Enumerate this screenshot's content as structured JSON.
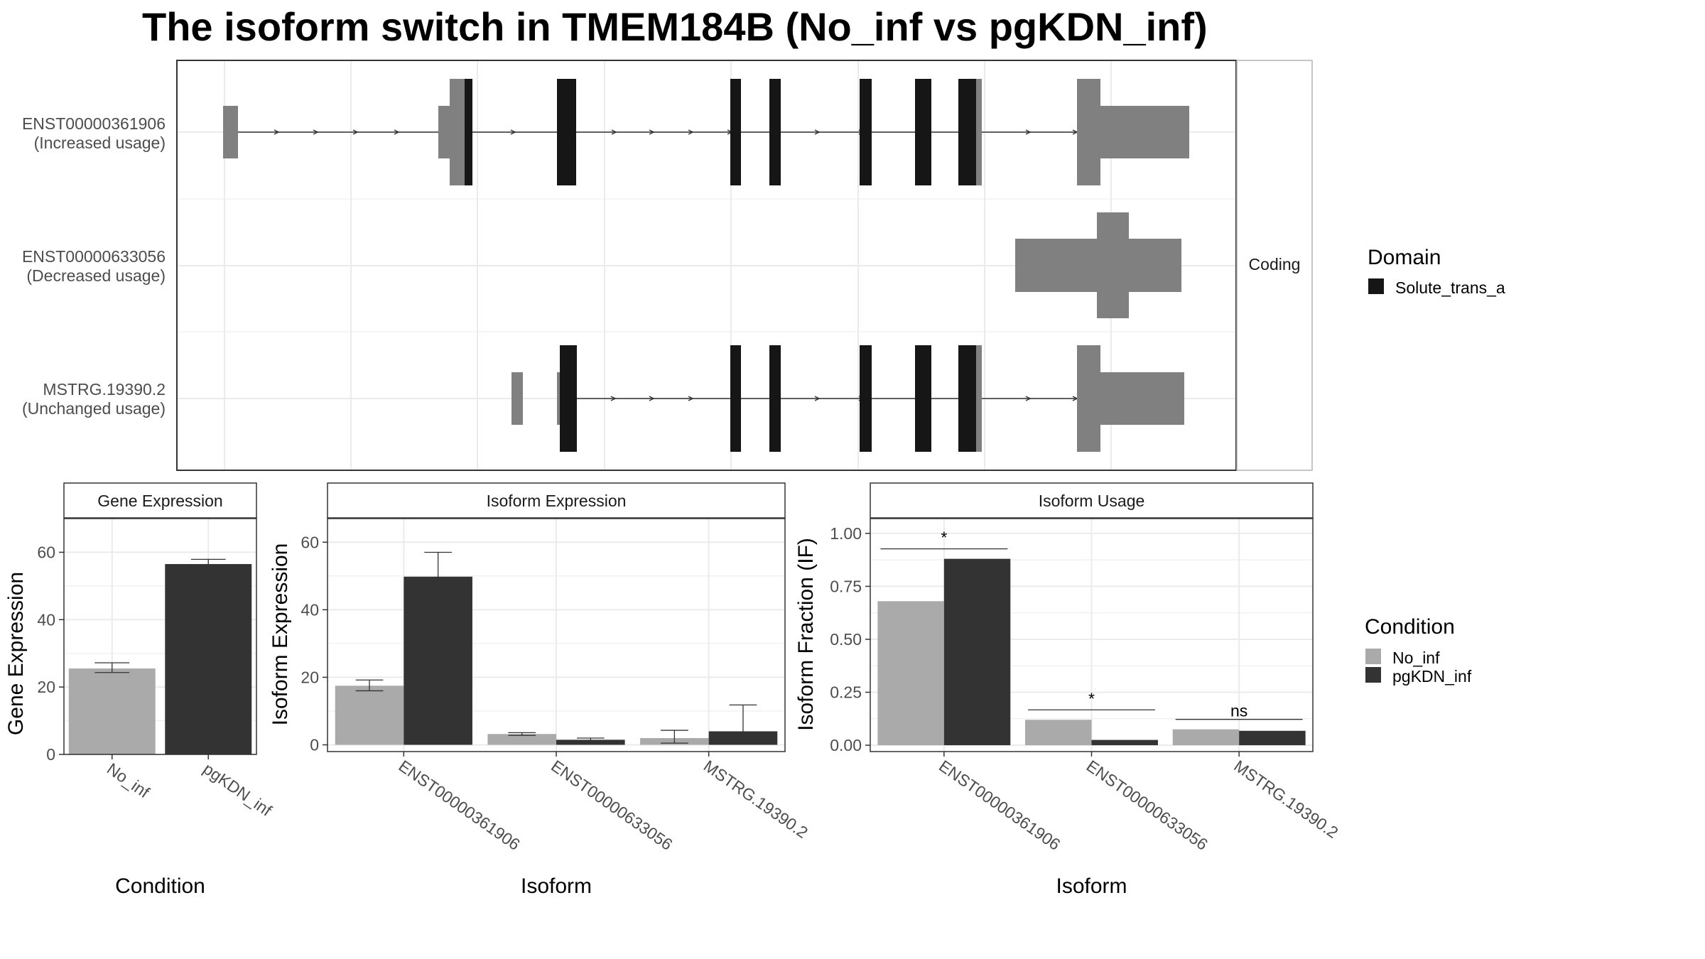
{
  "title": "The isoform switch in TMEM184B (No_inf vs pgKDN_inf)",
  "colors": {
    "no_inf": "#aaaaaa",
    "pgkdn_inf": "#333333",
    "utr": "#808080",
    "domain": "#161616",
    "grid": "#ebebeb",
    "border": "#333333",
    "strip_border": "#b3b3b3"
  },
  "structure": {
    "facet_label": "Coding",
    "transcripts": [
      {
        "id": "ENST00000361906",
        "usage": "(Increased usage)"
      },
      {
        "id": "ENST00000633056",
        "usage": "(Decreased usage)"
      },
      {
        "id": "MSTRG.19390.2",
        "usage": "(Unchanged usage)"
      }
    ],
    "domain_legend": {
      "title": "Domain",
      "items": [
        "Solute_trans_a"
      ]
    }
  },
  "condition_legend": {
    "title": "Condition",
    "items": [
      "No_inf",
      "pgKDN_inf"
    ]
  },
  "chart_data": [
    {
      "type": "bar",
      "strip": "Gene Expression",
      "xlabel": "Condition",
      "ylabel": "Gene Expression",
      "ylim": [
        0,
        70
      ],
      "yticks": [
        "0",
        "20",
        "40",
        "60"
      ],
      "categories": [
        "No_inf",
        "pgKDN_inf"
      ],
      "values": [
        25.5,
        56.5
      ],
      "errors": [
        [
          24.3,
          27.2
        ],
        [
          55.4,
          57.9
        ]
      ]
    },
    {
      "type": "bar",
      "strip": "Isoform Expression",
      "xlabel": "Isoform",
      "ylabel": "Isoform Expression",
      "ylim": [
        -2,
        67
      ],
      "yticks": [
        "0",
        "20",
        "40",
        "60"
      ],
      "categories": [
        "ENST00000361906",
        "ENST00000633056",
        "MSTRG.19390.2"
      ],
      "series": [
        {
          "name": "No_inf",
          "values": [
            17.5,
            3.2,
            2.0
          ],
          "errors": [
            [
              16.0,
              19.2
            ],
            [
              2.8,
              3.6
            ],
            [
              0.5,
              4.3
            ]
          ]
        },
        {
          "name": "pgKDN_inf",
          "values": [
            49.8,
            1.5,
            4.0
          ],
          "errors": [
            [
              42.8,
              57.0
            ],
            [
              1.0,
              2.0
            ],
            [
              0.2,
              11.8
            ]
          ]
        }
      ]
    },
    {
      "type": "bar",
      "strip": "Isoform Usage",
      "xlabel": "Isoform",
      "ylabel": "Isoform Fraction (IF)",
      "ylim": [
        -0.03,
        1.07
      ],
      "yticks": [
        "0.00",
        "0.25",
        "0.50",
        "0.75",
        "1.00"
      ],
      "categories": [
        "ENST00000361906",
        "ENST00000633056",
        "MSTRG.19390.2"
      ],
      "series": [
        {
          "name": "No_inf",
          "values": [
            0.68,
            0.12,
            0.075
          ]
        },
        {
          "name": "pgKDN_inf",
          "values": [
            0.88,
            0.025,
            0.068
          ]
        }
      ],
      "significance": [
        "*",
        "*",
        "ns"
      ]
    }
  ]
}
